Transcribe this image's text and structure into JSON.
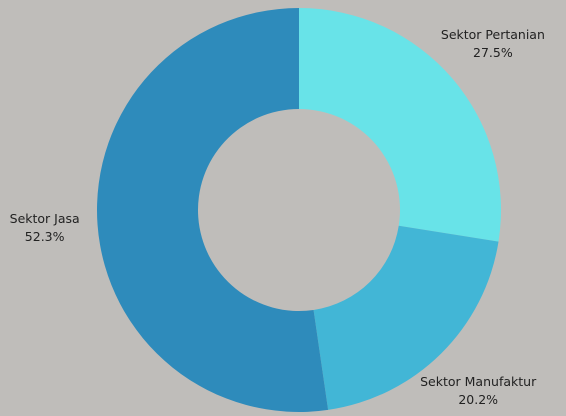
{
  "chart_data": {
    "type": "pie",
    "categories": [
      "Sektor Pertanian",
      "Sektor Manufaktur",
      "Sektor Jasa"
    ],
    "values": [
      27.5,
      20.2,
      52.3
    ],
    "value_labels": [
      "27.5%",
      "20.2%",
      "52.3%"
    ],
    "colors": [
      "#68e3e8",
      "#42b6d6",
      "#2e8bbb"
    ]
  }
}
